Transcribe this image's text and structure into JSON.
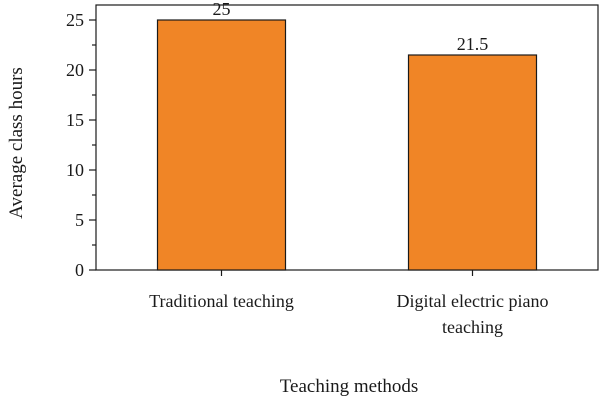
{
  "chart_data": {
    "type": "bar",
    "categories": [
      [
        "Traditional teaching"
      ],
      [
        "Digital electric piano",
        "teaching"
      ]
    ],
    "values": [
      25,
      21.5
    ],
    "value_labels": [
      "25",
      "21.5"
    ],
    "xlabel": "Teaching methods",
    "ylabel": "Average class hours",
    "ylim": [
      0,
      26.5
    ],
    "yticks": [
      0,
      5,
      10,
      15,
      20,
      25
    ],
    "ytick_labels": [
      "0",
      "5",
      "10",
      "15",
      "20",
      "25"
    ],
    "bar_color": "#f08526",
    "bar_edge_color": "#1a1a1a",
    "grid": false,
    "legend": false
  }
}
